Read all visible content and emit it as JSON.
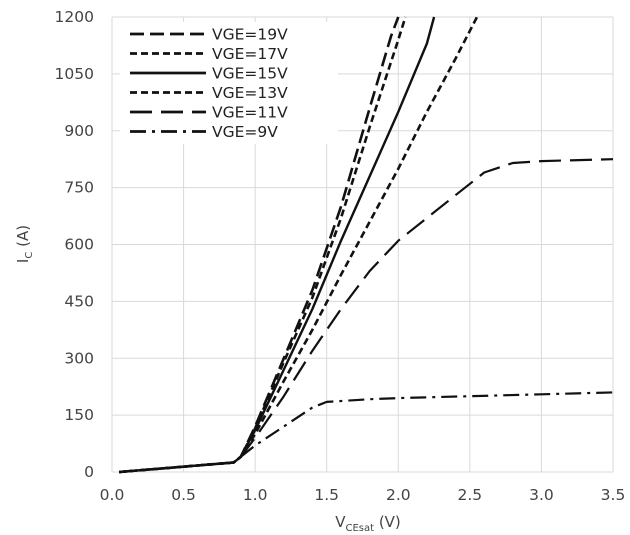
{
  "chart_data": {
    "type": "line",
    "title": "",
    "xlabel": {
      "main": "V",
      "sub": "CEsat",
      "unit": " (V)"
    },
    "ylabel": {
      "main": "I",
      "sub": "C",
      "unit": " (A)"
    },
    "xlim": [
      0,
      3.5
    ],
    "ylim": [
      0,
      1200
    ],
    "xticks": [
      "0.0",
      "0.5",
      "1.0",
      "1.5",
      "2.0",
      "2.5",
      "3.0",
      "3.5"
    ],
    "yticks": [
      "0",
      "150",
      "300",
      "450",
      "600",
      "750",
      "900",
      "1050",
      "1200"
    ],
    "grid": true,
    "legend_position": "top-left",
    "series": [
      {
        "name": "VGE=19V",
        "dash": "long",
        "points": [
          [
            0.05,
            0
          ],
          [
            0.85,
            25
          ],
          [
            0.9,
            40
          ],
          [
            1.0,
            120
          ],
          [
            1.2,
            300
          ],
          [
            1.4,
            480
          ],
          [
            1.6,
            700
          ],
          [
            1.8,
            960
          ],
          [
            1.95,
            1150
          ],
          [
            2.0,
            1200
          ]
        ]
      },
      {
        "name": "VGE=17V",
        "dash": "short",
        "points": [
          [
            0.05,
            0
          ],
          [
            0.85,
            25
          ],
          [
            0.9,
            40
          ],
          [
            1.0,
            115
          ],
          [
            1.2,
            290
          ],
          [
            1.4,
            460
          ],
          [
            1.6,
            670
          ],
          [
            1.8,
            910
          ],
          [
            2.0,
            1140
          ],
          [
            2.05,
            1200
          ]
        ]
      },
      {
        "name": "VGE=15V",
        "dash": "solid",
        "points": [
          [
            0.05,
            0
          ],
          [
            0.85,
            25
          ],
          [
            0.9,
            40
          ],
          [
            1.0,
            110
          ],
          [
            1.2,
            270
          ],
          [
            1.4,
            430
          ],
          [
            1.6,
            610
          ],
          [
            1.8,
            780
          ],
          [
            2.0,
            950
          ],
          [
            2.2,
            1130
          ],
          [
            2.25,
            1200
          ]
        ]
      },
      {
        "name": "VGE=13V",
        "dash": "short",
        "points": [
          [
            0.05,
            0
          ],
          [
            0.85,
            25
          ],
          [
            0.9,
            40
          ],
          [
            1.0,
            100
          ],
          [
            1.2,
            240
          ],
          [
            1.4,
            375
          ],
          [
            1.6,
            520
          ],
          [
            1.8,
            660
          ],
          [
            2.0,
            800
          ],
          [
            2.2,
            950
          ],
          [
            2.4,
            1090
          ],
          [
            2.55,
            1200
          ]
        ]
      },
      {
        "name": "VGE=11V",
        "dash": "longer",
        "points": [
          [
            0.05,
            0
          ],
          [
            0.85,
            25
          ],
          [
            0.9,
            40
          ],
          [
            1.0,
            90
          ],
          [
            1.2,
            200
          ],
          [
            1.4,
            320
          ],
          [
            1.6,
            430
          ],
          [
            1.8,
            530
          ],
          [
            2.0,
            610
          ],
          [
            2.2,
            670
          ],
          [
            2.4,
            730
          ],
          [
            2.6,
            790
          ],
          [
            2.8,
            815
          ],
          [
            3.0,
            820
          ],
          [
            3.5,
            825
          ]
        ]
      },
      {
        "name": "VGE=9V",
        "dash": "dashdot",
        "points": [
          [
            0.05,
            0
          ],
          [
            0.85,
            25
          ],
          [
            0.9,
            40
          ],
          [
            1.0,
            70
          ],
          [
            1.2,
            120
          ],
          [
            1.4,
            170
          ],
          [
            1.5,
            185
          ],
          [
            1.8,
            192
          ],
          [
            2.0,
            195
          ],
          [
            2.5,
            200
          ],
          [
            3.0,
            205
          ],
          [
            3.5,
            210
          ]
        ]
      }
    ]
  }
}
